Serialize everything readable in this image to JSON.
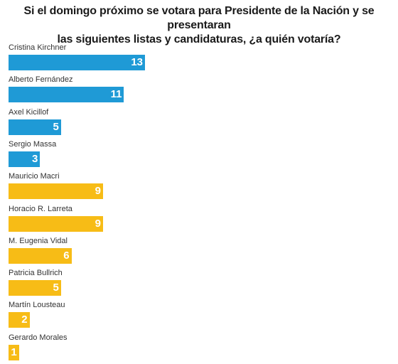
{
  "chart_data": {
    "type": "bar",
    "orientation": "horizontal",
    "title_lines": [
      "Si el domingo próximo se votara para Presidente de la Nación y se presentaran",
      "las siguientes listas y candidaturas, ¿a quién votaría?"
    ],
    "xlim": [
      0,
      35
    ],
    "categories": [
      "Cristina Kirchner",
      "Alberto Fernández",
      "Axel Kicillof",
      "Sergio Massa",
      "Mauricio Macri",
      "Horacio R. Larreta",
      "M. Eugenia Vidal",
      "Patricia Bullrich",
      "Martín Lousteau",
      "Gerardo Morales"
    ],
    "values": [
      13,
      11,
      5,
      3,
      9,
      9,
      6,
      5,
      2,
      1
    ],
    "colors": [
      "#1f9ad6",
      "#1f9ad6",
      "#1f9ad6",
      "#1f9ad6",
      "#f7bc16",
      "#f7bc16",
      "#f7bc16",
      "#f7bc16",
      "#f7bc16",
      "#f7bc16"
    ],
    "grid": false,
    "legend": "none"
  }
}
